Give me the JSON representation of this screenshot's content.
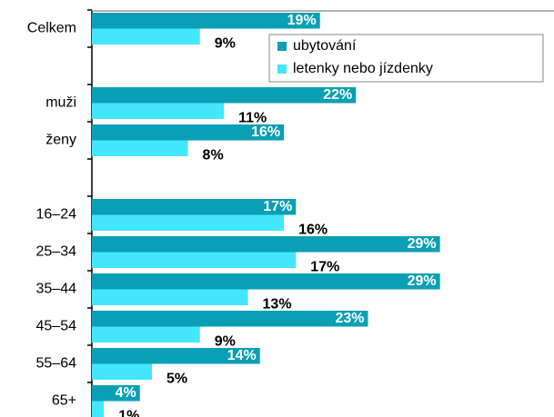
{
  "chart_data": {
    "type": "hbar",
    "categories": [
      "Celkem",
      null,
      "muži",
      "ženy",
      null,
      "16–24",
      "25–34",
      "35–44",
      "45–54",
      "55–64",
      "65+"
    ],
    "series": [
      {
        "name": "ubytování",
        "color": "#0a9fb5",
        "values": [
          19,
          null,
          22,
          16,
          null,
          17,
          29,
          29,
          23,
          14,
          4
        ],
        "value_labels": [
          "19%",
          null,
          "22%",
          "16%",
          null,
          "17%",
          "29%",
          "29%",
          "23%",
          "14%",
          "4%"
        ]
      },
      {
        "name": "letenky nebo jízdenky",
        "color": "#44e6fc",
        "values": [
          9,
          null,
          11,
          8,
          null,
          16,
          17,
          13,
          9,
          5,
          1
        ],
        "value_labels": [
          "9%",
          null,
          "11%",
          "8%",
          null,
          "16%",
          "17%",
          "13%",
          "9%",
          "5%",
          "1%"
        ]
      }
    ],
    "xlim": [
      0,
      38.5
    ],
    "legend": "top-right"
  }
}
